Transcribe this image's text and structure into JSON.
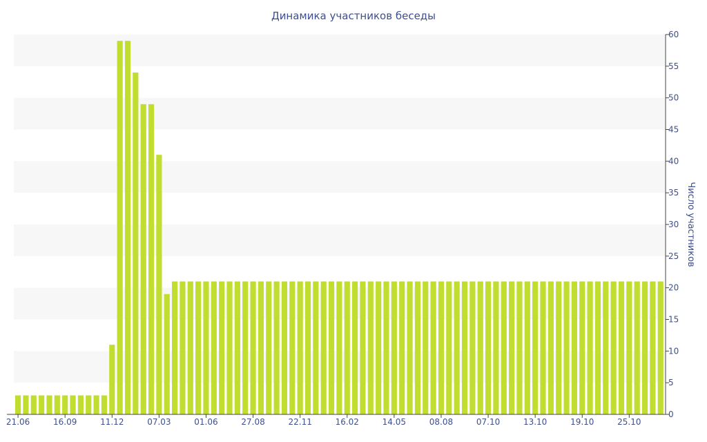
{
  "colors": {
    "bar": "#c0dd30",
    "text": "#3d4f8f",
    "band": "#f7f7f7",
    "axis": "#444444"
  },
  "chart_data": {
    "type": "bar",
    "title": "Динамика участников беседы",
    "xlabel": "",
    "ylabel": "Число участников",
    "y_axis_side": "right",
    "ylim": [
      0,
      60
    ],
    "yticks": [
      0,
      5,
      10,
      15,
      20,
      25,
      30,
      35,
      40,
      45,
      50,
      55,
      60
    ],
    "grid": "alternating horizontal bands",
    "x_tick_labels": [
      {
        "index": 0,
        "label": "21.06"
      },
      {
        "index": 6,
        "label": "16.09"
      },
      {
        "index": 12,
        "label": "11.12"
      },
      {
        "index": 18,
        "label": "07.03"
      },
      {
        "index": 24,
        "label": "01.06"
      },
      {
        "index": 30,
        "label": "27.08"
      },
      {
        "index": 36,
        "label": "22.11"
      },
      {
        "index": 42,
        "label": "16.02"
      },
      {
        "index": 48,
        "label": "14.05"
      },
      {
        "index": 54,
        "label": "08.08"
      },
      {
        "index": 60,
        "label": "07.10"
      },
      {
        "index": 66,
        "label": "13.10"
      },
      {
        "index": 72,
        "label": "19.10"
      },
      {
        "index": 78,
        "label": "25.10"
      }
    ],
    "values": [
      3,
      3,
      3,
      3,
      3,
      3,
      3,
      3,
      3,
      3,
      3,
      3,
      11,
      59,
      59,
      54,
      49,
      49,
      41,
      19,
      21,
      21,
      21,
      21,
      21,
      21,
      21,
      21,
      21,
      21,
      21,
      21,
      21,
      21,
      21,
      21,
      21,
      21,
      21,
      21,
      21,
      21,
      21,
      21,
      21,
      21,
      21,
      21,
      21,
      21,
      21,
      21,
      21,
      21,
      21,
      21,
      21,
      21,
      21,
      21,
      21,
      21,
      21,
      21,
      21,
      21,
      21,
      21,
      21,
      21,
      21,
      21,
      21,
      21,
      21,
      21,
      21,
      21,
      21,
      21,
      21,
      21,
      21
    ]
  }
}
